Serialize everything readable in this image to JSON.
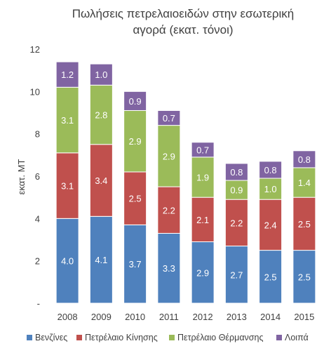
{
  "chart_data": {
    "type": "bar",
    "stacked": true,
    "title_lines": [
      "Πωλήσεις πετρελαιοειδών στην εσωτερική",
      "αγορά (εκατ. τόνοι)"
    ],
    "ylabel": "εκατ. ΜΤ",
    "xlabel": "",
    "ylim": [
      0,
      12
    ],
    "y_tick_labels": [
      "-",
      "2",
      "4",
      "6",
      "8",
      "10",
      "12"
    ],
    "categories": [
      "2008",
      "2009",
      "2010",
      "2011",
      "2012",
      "2013",
      "2014",
      "2015"
    ],
    "series": [
      {
        "name": "Βενζίνες",
        "color": "#4f81bd",
        "values": [
          4.0,
          4.1,
          3.7,
          3.3,
          2.9,
          2.7,
          2.5,
          2.5
        ]
      },
      {
        "name": "Πετρέλαιο Κίνησης",
        "color": "#c0504d",
        "values": [
          3.1,
          3.4,
          2.5,
          2.2,
          2.1,
          2.2,
          2.4,
          2.5
        ]
      },
      {
        "name": "Πετρέλαιο Θέρμανσης",
        "color": "#9bbb59",
        "values": [
          3.1,
          2.8,
          2.9,
          2.9,
          1.9,
          0.9,
          1.0,
          1.4
        ]
      },
      {
        "name": "Λοιπά",
        "color": "#8064a2",
        "values": [
          1.2,
          1.0,
          0.9,
          0.7,
          0.7,
          0.8,
          0.8,
          0.8
        ]
      }
    ],
    "data_labels": [
      [
        "4.0",
        "4.1",
        "3.7",
        "3.3",
        "2.9",
        "2.7",
        "2.5",
        "2.5"
      ],
      [
        "3.1",
        "3.4",
        "2.5",
        "2.2",
        "2.1",
        "2.2",
        "2.4",
        "2.5"
      ],
      [
        "3.1",
        "2.8",
        "2.9",
        "2.9",
        "1.9",
        "0.9",
        "1.0",
        "1.4"
      ],
      [
        "1.2",
        "1.0",
        "0.9",
        "0.7",
        "0.7",
        "0.8",
        "0.8",
        "0.8"
      ]
    ],
    "grid": false,
    "legend_position": "bottom"
  }
}
